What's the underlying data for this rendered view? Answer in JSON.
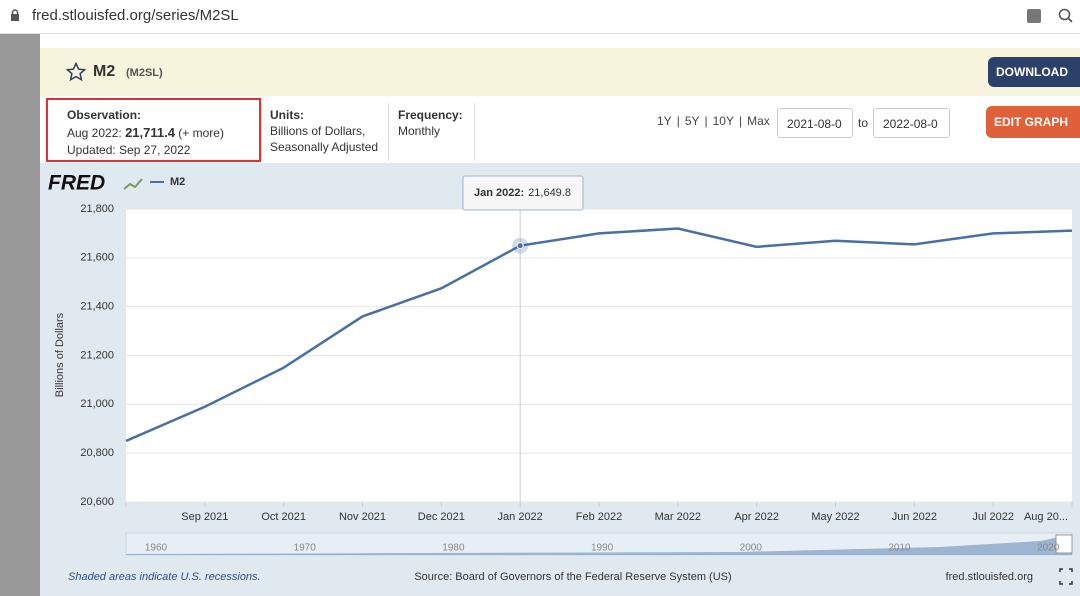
{
  "browser": {
    "url": "fred.stlouisfed.org/series/M2SL"
  },
  "header": {
    "title": "M2",
    "series_id": "(M2SL)",
    "download": "DOWNLOAD"
  },
  "info": {
    "observation": {
      "label": "Observation:",
      "date": "Aug 2022:",
      "value": "21,711.4",
      "more": "(+ more)",
      "updated": "Updated: Sep 27, 2022"
    },
    "units": {
      "label": "Units:",
      "line1": "Billions of Dollars,",
      "line2": "Seasonally Adjusted"
    },
    "frequency": {
      "label": "Frequency:",
      "value": "Monthly"
    },
    "ranges": [
      "1Y",
      "5Y",
      "10Y",
      "Max"
    ],
    "start": "2021-08-0",
    "to": "to",
    "end": "2022-08-0",
    "edit": "EDIT GRAPH"
  },
  "chart_data": {
    "type": "line",
    "logo": "FRED",
    "y_label": "Billions of Dollars",
    "categories": [
      null,
      "Sep 2021",
      "Oct 2021",
      "Nov 2021",
      "Dec 2021",
      "Jan 2022",
      "Feb 2022",
      "Mar 2022",
      "Apr 2022",
      "May 2022",
      "Jun 2022",
      "Jul 2022",
      "Aug 20..."
    ],
    "series": [
      {
        "name": "M2",
        "color": "#4a6fa5",
        "values": [
          20850,
          20990,
          21150,
          21360,
          21475,
          21649.8,
          21700,
          21720,
          21645,
          21670,
          21655,
          21700,
          21711.4
        ]
      }
    ],
    "ylim": [
      20600,
      21800
    ],
    "yticks": [
      {
        "value": 20600,
        "label": "20,600"
      },
      {
        "value": 20800,
        "label": "20,800"
      },
      {
        "value": 21000,
        "label": "21,000"
      },
      {
        "value": 21200,
        "label": "21,200"
      },
      {
        "value": 21400,
        "label": "21,400"
      },
      {
        "value": 21600,
        "label": "21,600"
      },
      {
        "value": 21800,
        "label": "21,800"
      }
    ],
    "grid": true,
    "tooltip": {
      "date": "Jan 2022:",
      "value": "21,649.8"
    },
    "navigator": [
      "1960",
      "1970",
      "1980",
      "1990",
      "2000",
      "2010",
      "2020"
    ]
  },
  "footer": {
    "note": "Shaded areas indicate U.S. recessions.",
    "source": "Source: Board of Governors of the Federal Reserve System (US)",
    "site": "fred.stlouisfed.org"
  }
}
